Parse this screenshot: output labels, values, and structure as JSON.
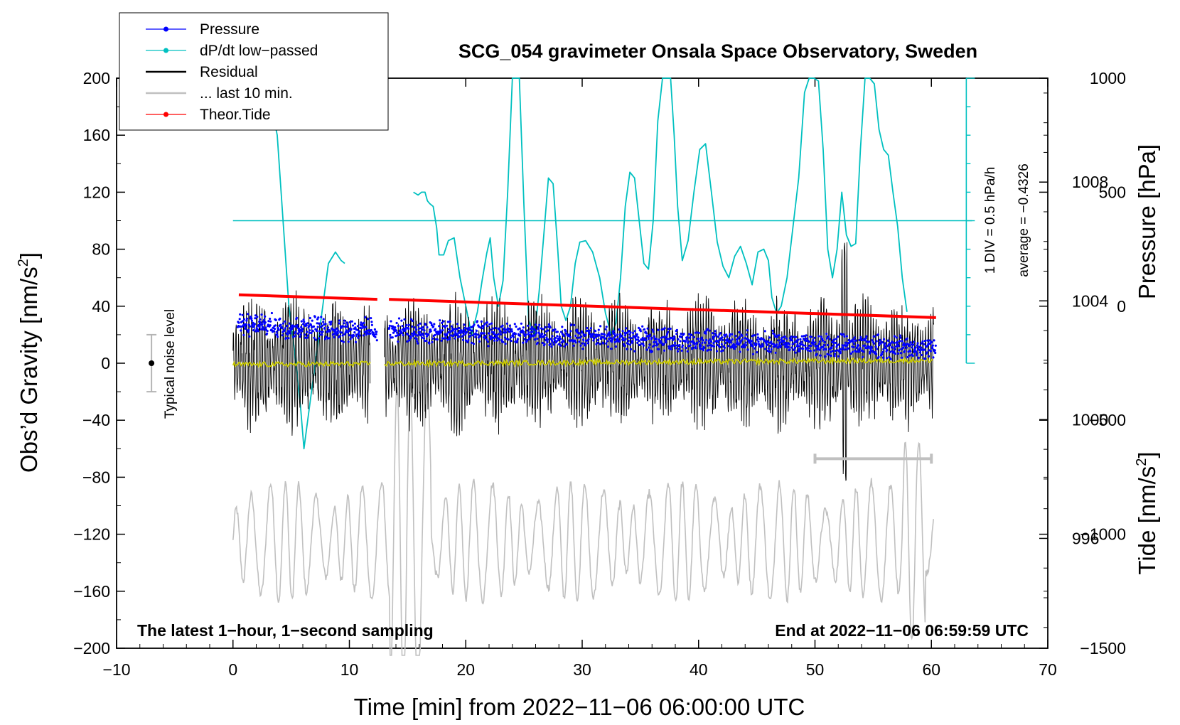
{
  "chart_data": {
    "type": "line",
    "title": "SCG_054 gravimeter Onsala Space Observatory, Sweden",
    "xlabel": "Time [min] from 2022−11−06 06:00:00 UTC",
    "ylabel_left": "Obs’d Gravity [nm/s",
    "ylabel_left_sup": "2",
    "ylabel_left_end": "]",
    "ylabel_right_top": "Pressure [hPa]",
    "ylabel_right_bottom": "Tide [nm/s",
    "ylabel_right_bottom_sup": "2",
    "ylabel_right_bottom_end": "]",
    "xlim": [
      -10,
      70
    ],
    "ylim": [
      -200,
      200
    ],
    "x_ticks": [
      -10,
      0,
      10,
      20,
      30,
      40,
      50,
      60,
      70
    ],
    "x_tick_labels": [
      "−10",
      "0",
      "10",
      "20",
      "30",
      "40",
      "50",
      "60",
      "70"
    ],
    "y_ticks": [
      -200,
      -160,
      -120,
      -80,
      -40,
      0,
      40,
      80,
      120,
      160,
      200
    ],
    "y_tick_labels": [
      "−200",
      "−160",
      "−120",
      "−80",
      "−40",
      "0",
      "40",
      "80",
      "120",
      "160",
      "200"
    ],
    "pressure_axis": {
      "range": [
        992.3,
        1011.5
      ],
      "ticks": [
        996,
        1000,
        1004,
        1008
      ],
      "tick_labels": [
        "996",
        "1000",
        "1004",
        "1008"
      ]
    },
    "tide_axis": {
      "range": [
        -1500,
        1000
      ],
      "ticks": [
        -1500,
        -1000,
        -500,
        0,
        500,
        1000
      ],
      "tick_labels": [
        "−1500",
        "−1000",
        "−500",
        "0",
        "500",
        "1000"
      ]
    },
    "legend": {
      "position": "top-left",
      "entries": [
        {
          "label": "Pressure",
          "color": "#0000ff",
          "marker": "dot"
        },
        {
          "label": "dP/dt low−passed",
          "color": "#00c0c0",
          "marker": "dot"
        },
        {
          "label": "Residual",
          "color": "#000000",
          "marker": "none"
        },
        {
          "label": "... last 10 min.",
          "color": "#c0c0c0",
          "marker": "none"
        },
        {
          "label": "Theor.Tide",
          "color": "#ff0000",
          "marker": "dot"
        }
      ]
    },
    "series": [
      {
        "name": "Pressure",
        "axis": "pressure",
        "color": "#0000ff",
        "segments": [
          [
            0.4,
            12.4,
            1003.2,
            1003.0
          ],
          [
            13.4,
            60.4,
            1003.0,
            1002.4
          ]
        ],
        "scatter": 0.45
      },
      {
        "name": "dP/dt low−passed",
        "axis": "left",
        "color": "#00c0c0",
        "x": [
          3.5,
          3.8,
          4.3,
          4.8,
          5.3,
          5.8,
          6.1,
          8.2,
          8.8,
          9.3,
          9.6
        ],
        "y": [
          172,
          160,
          100,
          40,
          8,
          -30,
          -60,
          70,
          78,
          72,
          70
        ],
        "x2": [
          15.5,
          15.9,
          16.2,
          16.5,
          16.7,
          16.9,
          17.2,
          17.5,
          17.7,
          18.1,
          18.5,
          19.0,
          19.5,
          20.0,
          20.5,
          21.0,
          21.4,
          21.8,
          22.1,
          22.4,
          22.8,
          23.2,
          23.6,
          24.0,
          24.3,
          24.6,
          25.0,
          25.4,
          25.9,
          26.3,
          26.7,
          27.1,
          27.5,
          27.9,
          28.2,
          28.6,
          29.0,
          29.4,
          29.8,
          30.3,
          30.9,
          31.5,
          32.0,
          32.5,
          32.9,
          33.3,
          33.7,
          34.1,
          34.5,
          34.9,
          35.3,
          35.7,
          36.1,
          36.5,
          36.9,
          37.2,
          37.6,
          37.9,
          38.2,
          38.6,
          39.1,
          39.6,
          40.1,
          40.6,
          41.1,
          41.6,
          42.1,
          42.6,
          43.1,
          43.6,
          44.1,
          44.6,
          45.1,
          45.6,
          46.0,
          46.3,
          46.7,
          47.1,
          47.6,
          48.1,
          48.6,
          49.1,
          49.5,
          49.9,
          50.3,
          50.7,
          51.1,
          51.5,
          51.9,
          52.3,
          52.7,
          53.1,
          53.5,
          53.9,
          54.3,
          54.7,
          55.1,
          55.5,
          55.9,
          56.3,
          56.7,
          57.1,
          57.5,
          57.9
        ],
        "y2": [
          120,
          118,
          120,
          120,
          114,
          112,
          110,
          95,
          76,
          76,
          86,
          88,
          60,
          40,
          20,
          36,
          58,
          77,
          88,
          60,
          40,
          58,
          120,
          200,
          205,
          200,
          110,
          30,
          20,
          50,
          90,
          130,
          126,
          80,
          40,
          30,
          40,
          70,
          85,
          86,
          78,
          60,
          35,
          20,
          28,
          60,
          110,
          134,
          130,
          100,
          70,
          66,
          100,
          170,
          200,
          210,
          200,
          160,
          110,
          72,
          86,
          120,
          150,
          154,
          120,
          85,
          68,
          60,
          75,
          82,
          70,
          55,
          78,
          80,
          72,
          46,
          35,
          40,
          60,
          95,
          130,
          190,
          200,
          205,
          198,
          150,
          80,
          60,
          80,
          120,
          90,
          82,
          84,
          150,
          200,
          205,
          196,
          164,
          150,
          146,
          120,
          96,
          60,
          36
        ]
      },
      {
        "name": "Residual",
        "axis": "left",
        "color": "#000000",
        "segments": [
          [
            0,
            11.8
          ],
          [
            13.0,
            60.2
          ]
        ],
        "amplitude": 40
      },
      {
        "name": "Residual mean",
        "axis": "left",
        "color": "#c8c800",
        "segments": [
          [
            0,
            11.8
          ],
          [
            13.0,
            60.2
          ]
        ],
        "values": [
          -1,
          2
        ]
      },
      {
        "name": "... last 10 min.",
        "axis": "left",
        "color": "#c0c0c0",
        "range": [
          0,
          60.2
        ],
        "center": -125,
        "amplitude": 35
      },
      {
        "name": "Theor.Tide",
        "axis": "tide",
        "color": "#ff0000",
        "segments": [
          [
            0.5,
            12.4,
            50,
            30
          ],
          [
            13.4,
            60.4,
            30,
            -50
          ]
        ]
      }
    ],
    "annotations": {
      "noise_label": "Typical noise level",
      "noise_bar": {
        "x": -7,
        "y_center": 0,
        "half_range": 20
      },
      "div_label": "1 DIV = 0.5 hPa/h",
      "average_label": "average = −0.4326",
      "dpdt_zero_level": 100,
      "bottom_left": "The latest 1−hour, 1−second sampling",
      "bottom_right": "End at 2022−11−06 06:59:59 UTC",
      "ten_min_bar": {
        "x_start": 50,
        "x_end": 60,
        "y": -67
      }
    }
  }
}
